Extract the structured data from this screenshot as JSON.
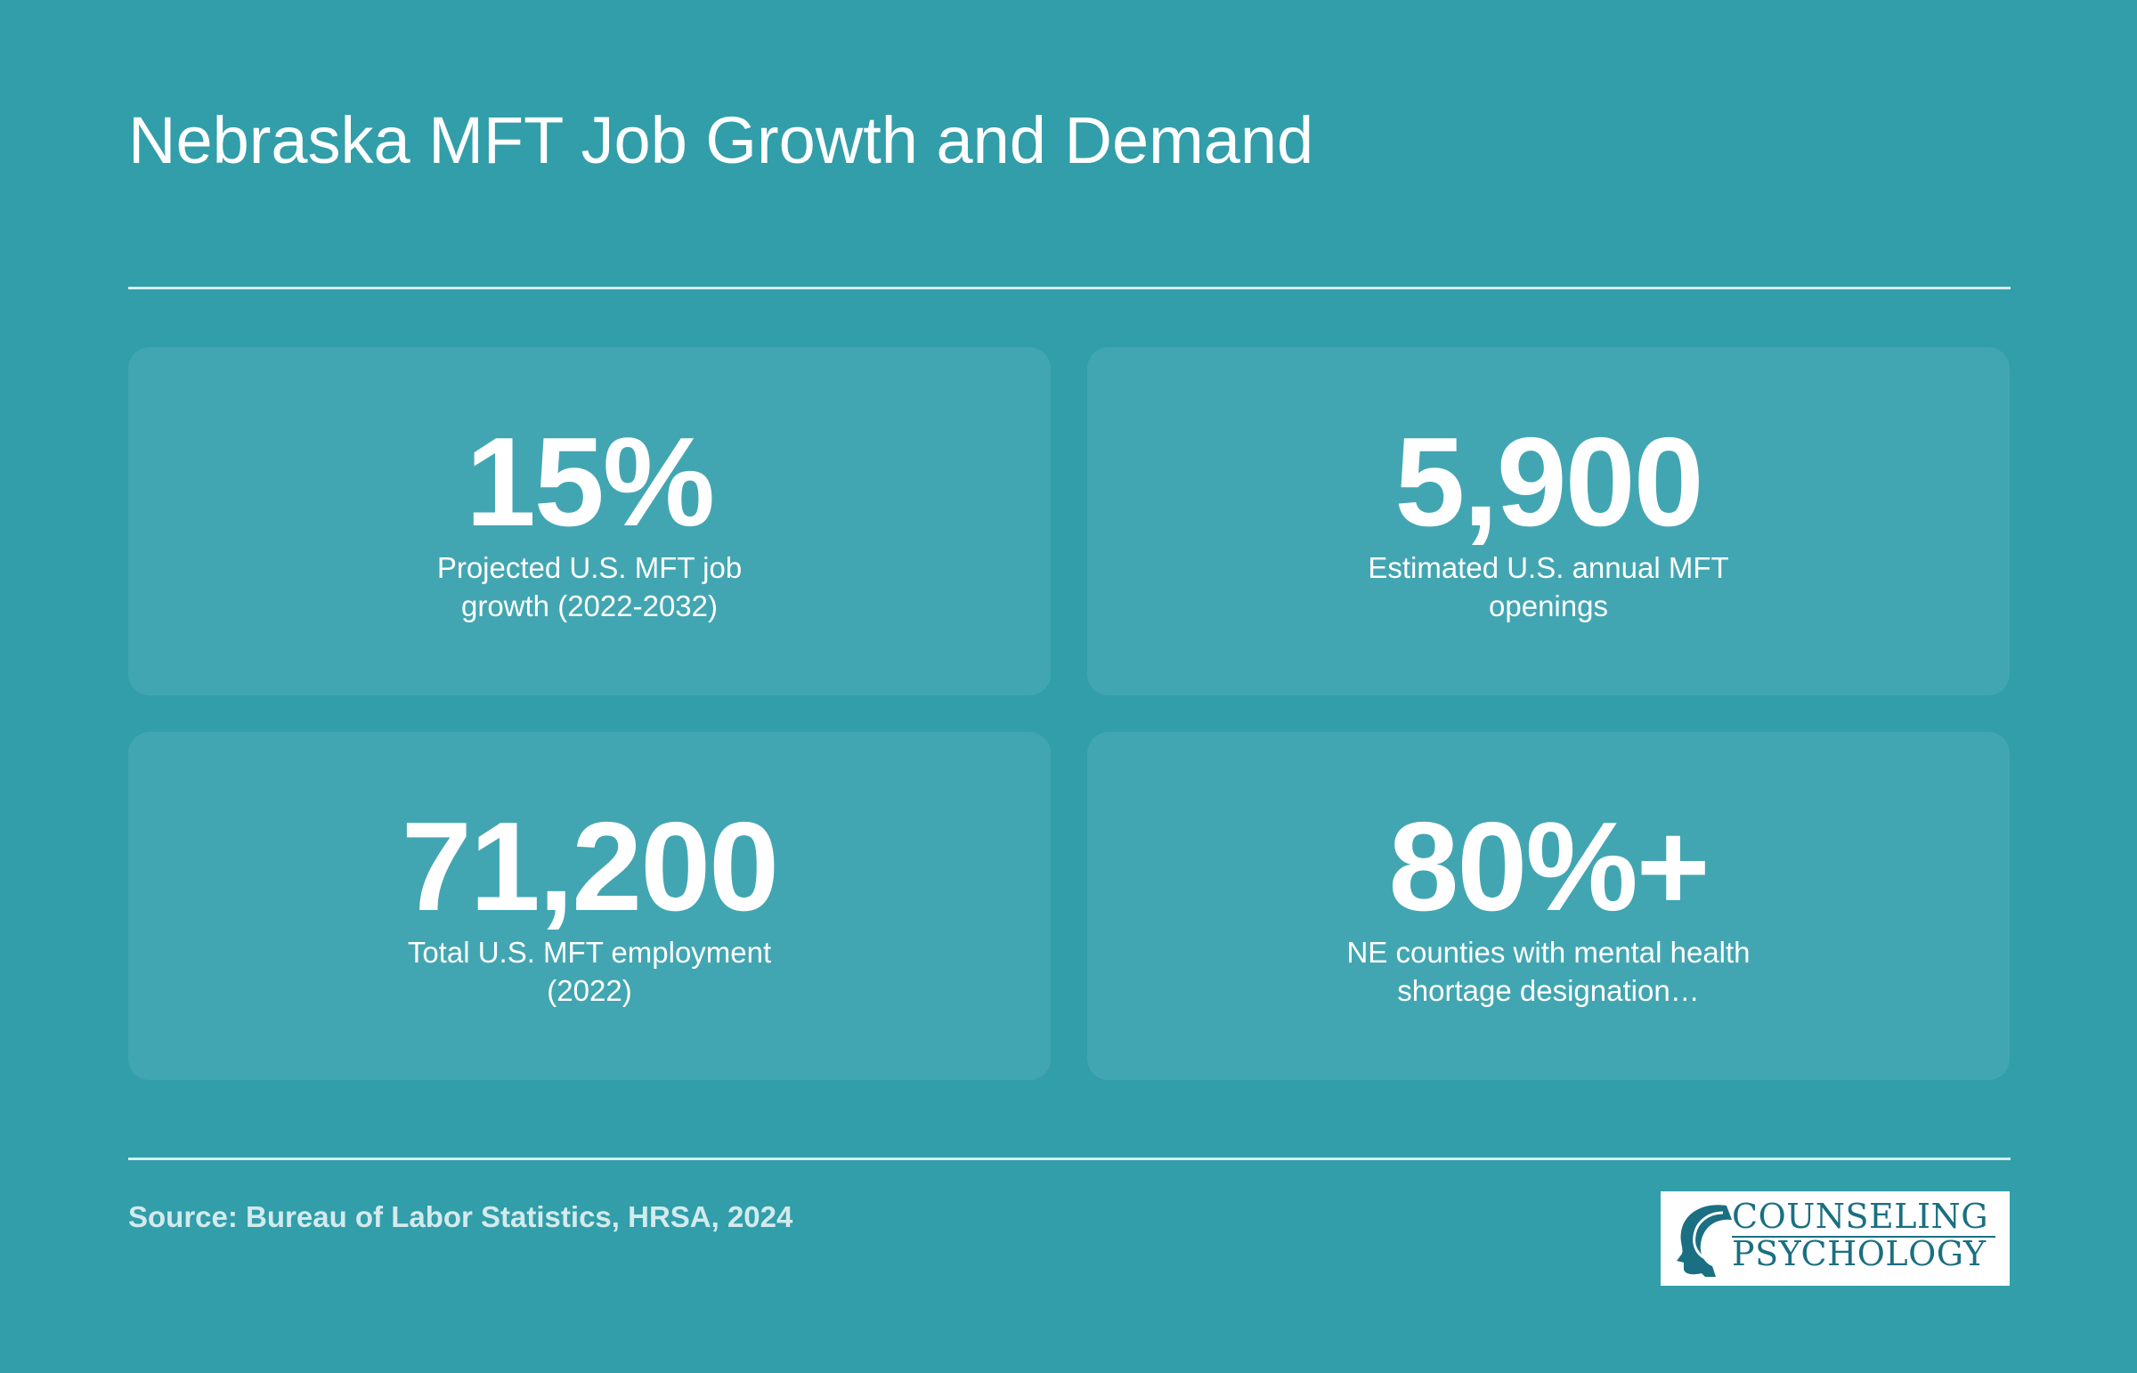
{
  "header": {
    "title": "Nebraska MFT Job Growth and Demand"
  },
  "stats": [
    {
      "value": "15%",
      "label": "Projected U.S. MFT job growth (2022-2032)"
    },
    {
      "value": "5,900",
      "label": "Estimated U.S. annual MFT openings"
    },
    {
      "value": "71,200",
      "label": "Total U.S. MFT employment (2022)"
    },
    {
      "value": "80%+",
      "label": "NE counties with mental health shortage designation…"
    }
  ],
  "footer": {
    "source": "Source: Bureau of Labor Statistics, HRSA, 2024",
    "logo_line1": "COUNSELING",
    "logo_line2": "PSYCHOLOGY"
  },
  "colors": {
    "background": "#319ea9",
    "card": "#42a6b2",
    "logo_text": "#1a6f82"
  }
}
